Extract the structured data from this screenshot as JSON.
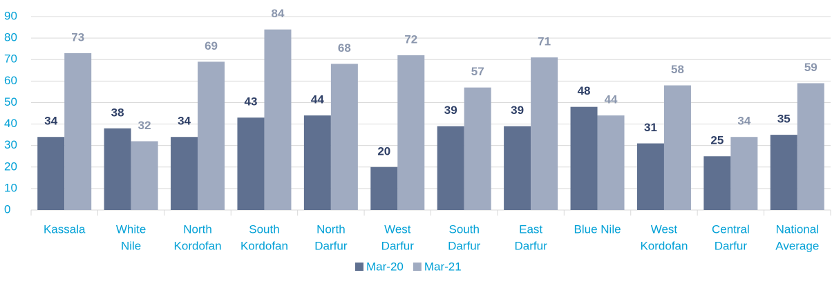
{
  "chart_data": {
    "type": "bar",
    "categories": [
      [
        "Kassala"
      ],
      [
        "White",
        "Nile"
      ],
      [
        "North",
        "Kordofan"
      ],
      [
        "South",
        "Kordofan"
      ],
      [
        "North",
        "Darfur"
      ],
      [
        "West",
        "Darfur"
      ],
      [
        "South",
        "Darfur"
      ],
      [
        "East",
        "Darfur"
      ],
      [
        "Blue Nile"
      ],
      [
        "West",
        "Kordofan"
      ],
      [
        "Central",
        "Darfur"
      ],
      [
        "National",
        "Average"
      ]
    ],
    "series": [
      {
        "name": "Mar-20",
        "color": "#5f7090",
        "label_color": "#2e3f66",
        "values": [
          34,
          38,
          34,
          43,
          44,
          20,
          39,
          39,
          48,
          31,
          25,
          35
        ]
      },
      {
        "name": "Mar-21",
        "color": "#a0abc1",
        "label_color": "#8a96ad",
        "values": [
          73,
          32,
          69,
          84,
          68,
          72,
          57,
          71,
          44,
          58,
          34,
          59
        ]
      }
    ],
    "ylim": [
      0,
      90
    ],
    "yticks": [
      0,
      10,
      20,
      30,
      40,
      50,
      60,
      70,
      80,
      90
    ],
    "grid": true,
    "legend": "bottom"
  }
}
